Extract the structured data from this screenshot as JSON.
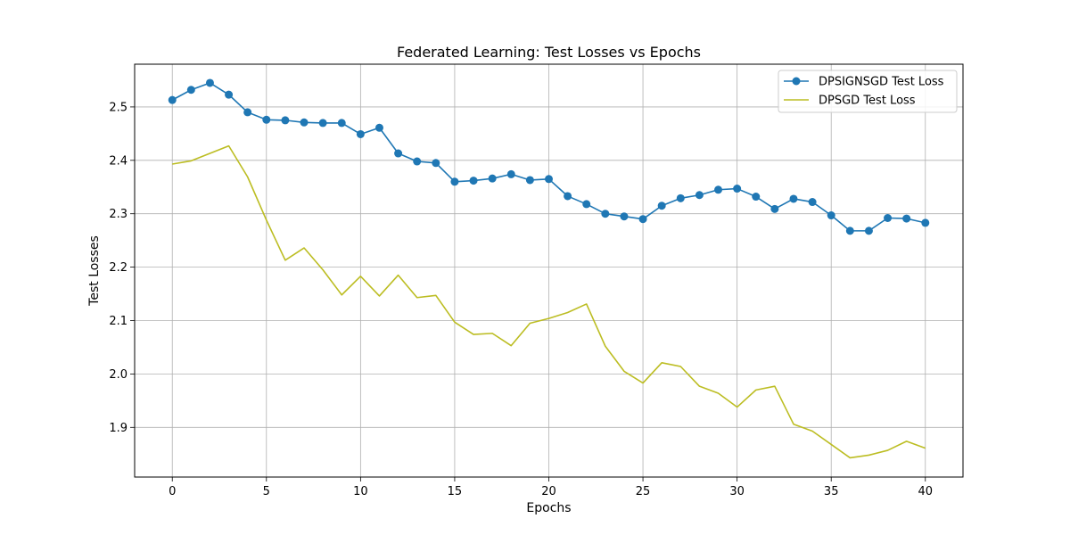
{
  "chart_data": {
    "type": "line",
    "title": "Federated Learning: Test Losses vs Epochs",
    "xlabel": "Epochs",
    "ylabel": "Test Losses",
    "xlim": [
      -2,
      42
    ],
    "ylim": [
      1.807,
      2.58
    ],
    "x_ticks": [
      0,
      5,
      10,
      15,
      20,
      25,
      30,
      35,
      40
    ],
    "y_ticks": [
      1.9,
      2.0,
      2.1,
      2.2,
      2.3,
      2.4,
      2.5
    ],
    "grid": true,
    "legend_position": "top-right",
    "x": [
      0,
      1,
      2,
      3,
      4,
      5,
      6,
      7,
      8,
      9,
      10,
      11,
      12,
      13,
      14,
      15,
      16,
      17,
      18,
      19,
      20,
      21,
      22,
      23,
      24,
      25,
      26,
      27,
      28,
      29,
      30,
      31,
      32,
      33,
      34,
      35,
      36,
      37,
      38,
      39,
      40
    ],
    "series": [
      {
        "name": "DPSIGNSGD Test Loss",
        "color": "#1f77b4",
        "marker": "circle",
        "values": [
          2.513,
          2.532,
          2.545,
          2.523,
          2.49,
          2.476,
          2.475,
          2.471,
          2.47,
          2.47,
          2.449,
          2.461,
          2.413,
          2.398,
          2.395,
          2.36,
          2.362,
          2.366,
          2.374,
          2.363,
          2.365,
          2.333,
          2.318,
          2.3,
          2.295,
          2.29,
          2.315,
          2.329,
          2.335,
          2.345,
          2.347,
          2.332,
          2.309,
          2.328,
          2.322,
          2.297,
          2.268,
          2.268,
          2.292,
          2.291,
          2.283
        ]
      },
      {
        "name": "DPSGD Test Loss",
        "color": "#bcbd22",
        "marker": "none",
        "values": [
          2.393,
          2.399,
          2.413,
          2.427,
          2.369,
          2.288,
          2.213,
          2.236,
          2.195,
          2.148,
          2.183,
          2.146,
          2.185,
          2.143,
          2.147,
          2.097,
          2.074,
          2.076,
          2.053,
          2.095,
          2.104,
          2.115,
          2.131,
          2.052,
          2.005,
          1.983,
          2.021,
          2.014,
          1.977,
          1.964,
          1.938,
          1.97,
          1.977,
          1.906,
          1.893,
          1.868,
          1.843,
          1.848,
          1.857,
          1.874,
          1.861
        ]
      }
    ]
  }
}
